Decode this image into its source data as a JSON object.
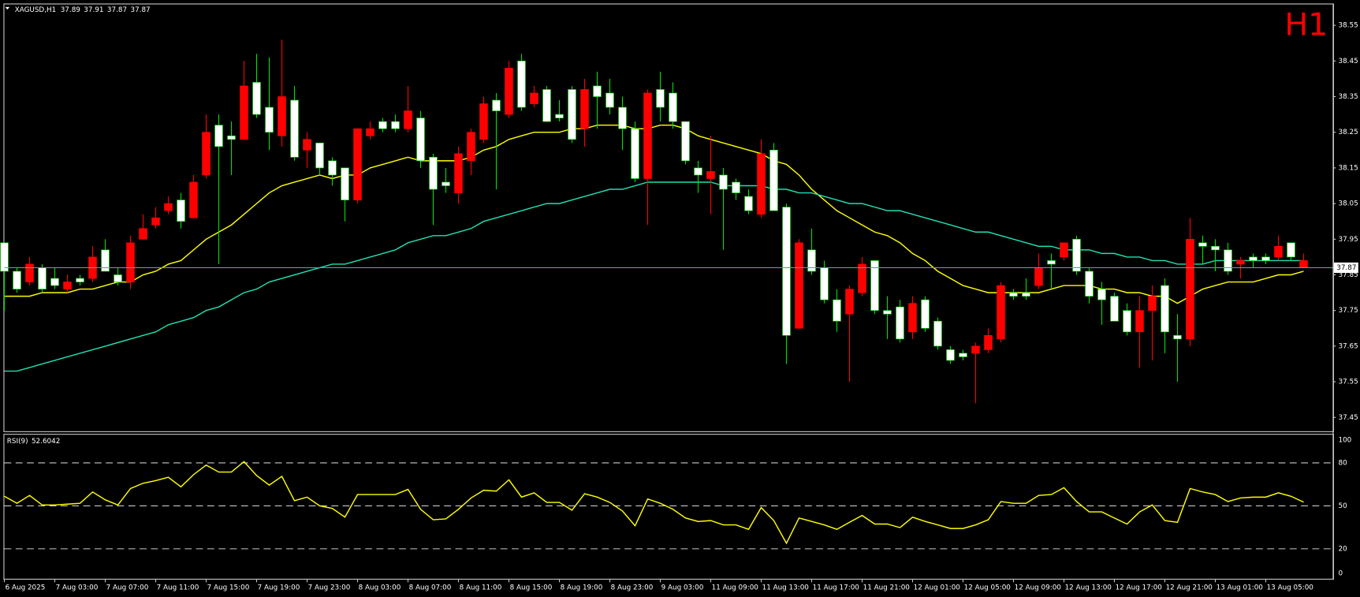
{
  "chart_data": [
    {
      "type": "candlestick",
      "title": "XAGUSD,H1",
      "timeframe_label": "H1",
      "categories": [
        "6 Aug 2025",
        null,
        null,
        null,
        "7 Aug 03:00",
        null,
        null,
        null,
        "7 Aug 07:00",
        null,
        null,
        null,
        "7 Aug 11:00",
        null,
        null,
        null,
        "7 Aug 15:00",
        null,
        null,
        null,
        "7 Aug 19:00",
        null,
        null,
        null,
        "7 Aug 23:00",
        null,
        null,
        null,
        "8 Aug 03:00",
        null,
        null,
        null,
        "8 Aug 07:00",
        null,
        null,
        null,
        "8 Aug 11:00",
        null,
        null,
        null,
        "8 Aug 15:00",
        null,
        null,
        null,
        "8 Aug 19:00",
        null,
        null,
        null,
        "8 Aug 23:00",
        null,
        null,
        null,
        "9 Aug 03:00",
        null,
        null,
        null,
        "11 Aug 09:00",
        null,
        null,
        null,
        "11 Aug 13:00",
        null,
        null,
        null,
        "11 Aug 17:00",
        null,
        null,
        null,
        "11 Aug 21:00",
        null,
        null,
        null,
        "12 Aug 01:00",
        null,
        null,
        null,
        "12 Aug 05:00",
        null,
        null,
        null,
        "12 Aug 09:00",
        null,
        null,
        null,
        "12 Aug 13:00",
        null,
        null,
        null,
        "12 Aug 17:00",
        null,
        null,
        null,
        "12 Aug 21:00",
        null,
        null,
        null,
        "13 Aug 01:00",
        null,
        null,
        null,
        "13 Aug 05:00",
        null,
        null,
        null
      ],
      "open": [
        37.86,
        37.81,
        37.88,
        37.81,
        37.82,
        37.83,
        37.83,
        37.9,
        37.86,
        37.83,
        37.94,
        37.98,
        38.01,
        38.05,
        38.0,
        38.11,
        38.25,
        38.21,
        38.23,
        38.38,
        38.3,
        38.25,
        38.35,
        38.18,
        38.23,
        38.15,
        38.13,
        38.06,
        38.26,
        38.26,
        38.26,
        38.26,
        38.31,
        38.17,
        38.09,
        38.1,
        38.19,
        38.25,
        38.33,
        38.31,
        38.43,
        38.32,
        38.36,
        38.28,
        38.29,
        38.23,
        38.37,
        38.35,
        38.32,
        38.26,
        38.12,
        38.36,
        38.32,
        38.28,
        38.17,
        38.13,
        38.14,
        38.09,
        38.08,
        38.03,
        38.19,
        38.03,
        37.68,
        37.94,
        37.86,
        37.78,
        37.72,
        37.81,
        37.88,
        37.75,
        37.74,
        37.67,
        37.77,
        37.7,
        37.65,
        37.61,
        37.62,
        37.65,
        37.68,
        37.82,
        37.79,
        37.79,
        37.87,
        37.88,
        37.94,
        37.86,
        37.79,
        37.78,
        37.72,
        37.69,
        37.75,
        37.79,
        37.69,
        37.67,
        37.95,
        37.93,
        37.92,
        37.86,
        37.89,
        37.89,
        37.89,
        37.93,
        37.9,
        37.89
      ],
      "high": [
        37.94,
        37.87,
        37.9,
        37.88,
        37.87,
        37.85,
        37.85,
        37.93,
        37.95,
        37.87,
        37.96,
        38.02,
        38.04,
        38.07,
        38.08,
        38.13,
        38.3,
        38.3,
        38.28,
        38.45,
        38.47,
        38.46,
        38.51,
        38.38,
        38.25,
        38.22,
        38.18,
        38.15,
        38.26,
        38.28,
        38.29,
        38.3,
        38.38,
        38.31,
        38.19,
        38.15,
        38.21,
        38.26,
        38.35,
        38.36,
        38.45,
        38.47,
        38.38,
        38.38,
        38.34,
        38.38,
        38.4,
        38.42,
        38.4,
        38.35,
        38.28,
        38.37,
        38.42,
        38.39,
        38.28,
        38.17,
        38.24,
        38.15,
        38.12,
        38.09,
        38.23,
        38.22,
        38.05,
        37.95,
        37.98,
        37.89,
        37.81,
        37.82,
        37.9,
        37.89,
        37.79,
        37.78,
        37.79,
        37.79,
        37.73,
        37.65,
        37.64,
        37.66,
        37.7,
        37.83,
        37.81,
        37.84,
        37.91,
        37.91,
        37.94,
        37.96,
        37.87,
        37.83,
        37.8,
        37.77,
        37.79,
        37.82,
        37.84,
        37.74,
        38.01,
        37.96,
        37.95,
        37.94,
        37.9,
        37.91,
        37.91,
        37.96,
        37.94,
        37.91
      ],
      "low": [
        37.75,
        37.8,
        37.82,
        37.8,
        37.81,
        37.8,
        37.82,
        37.83,
        37.86,
        37.82,
        37.81,
        37.95,
        37.98,
        38.02,
        37.98,
        38.01,
        38.12,
        37.88,
        38.13,
        38.23,
        38.29,
        38.2,
        38.21,
        38.17,
        38.15,
        38.13,
        38.1,
        38.0,
        38.05,
        38.23,
        38.25,
        38.25,
        38.25,
        38.15,
        37.99,
        38.08,
        38.05,
        38.13,
        38.22,
        38.09,
        38.29,
        38.31,
        38.32,
        38.28,
        38.28,
        38.22,
        38.21,
        38.26,
        38.3,
        38.2,
        38.11,
        37.99,
        38.28,
        38.26,
        38.16,
        38.08,
        38.02,
        37.92,
        38.06,
        38.02,
        38.01,
        38.03,
        37.6,
        37.7,
        37.85,
        37.77,
        37.69,
        37.55,
        37.79,
        37.74,
        37.67,
        37.66,
        37.67,
        37.69,
        37.64,
        37.6,
        37.61,
        37.49,
        37.63,
        37.66,
        37.78,
        37.78,
        37.81,
        37.81,
        37.89,
        37.85,
        37.77,
        37.71,
        37.72,
        37.68,
        37.59,
        37.61,
        37.63,
        37.55,
        37.65,
        37.88,
        37.86,
        37.85,
        37.84,
        37.87,
        37.88,
        37.89,
        37.89,
        37.87
      ],
      "close": [
        37.94,
        37.86,
        37.83,
        37.87,
        37.84,
        37.81,
        37.84,
        37.84,
        37.92,
        37.85,
        37.83,
        37.95,
        37.99,
        38.03,
        38.06,
        38.01,
        38.13,
        38.27,
        38.24,
        38.23,
        38.39,
        38.32,
        38.24,
        38.34,
        38.2,
        38.22,
        38.17,
        38.15,
        38.06,
        38.24,
        38.28,
        38.28,
        38.26,
        38.29,
        38.18,
        38.11,
        38.08,
        38.17,
        38.23,
        38.34,
        38.3,
        38.45,
        38.33,
        38.37,
        38.3,
        38.37,
        38.26,
        38.38,
        38.36,
        38.32,
        38.26,
        38.12,
        38.37,
        38.36,
        38.28,
        38.15,
        38.12,
        38.13,
        38.11,
        38.07,
        38.02,
        38.2,
        38.04,
        37.7,
        37.92,
        37.87,
        37.78,
        37.74,
        37.8,
        37.89,
        37.75,
        37.76,
        37.69,
        37.78,
        37.72,
        37.64,
        37.63,
        37.63,
        37.64,
        37.67,
        37.8,
        37.8,
        37.82,
        37.89,
        37.9,
        37.95,
        37.86,
        37.81,
        37.79,
        37.75,
        37.69,
        37.75,
        37.82,
        37.68,
        37.67,
        37.94,
        37.93,
        37.92,
        37.88,
        37.9,
        37.9,
        37.9,
        37.94,
        37.87
      ],
      "lines": [
        {
          "color": "#ffff00",
          "values": [
            37.79,
            37.79,
            37.79,
            37.8,
            37.8,
            37.8,
            37.81,
            37.81,
            37.82,
            37.83,
            37.83,
            37.85,
            37.86,
            37.88,
            37.89,
            37.92,
            37.95,
            37.97,
            37.99,
            38.02,
            38.05,
            38.08,
            38.1,
            38.11,
            38.12,
            38.13,
            38.12,
            38.13,
            38.13,
            38.15,
            38.16,
            38.17,
            38.18,
            38.17,
            38.17,
            38.17,
            38.17,
            38.18,
            38.2,
            38.21,
            38.23,
            38.24,
            38.25,
            38.25,
            38.25,
            38.26,
            38.26,
            38.27,
            38.27,
            38.27,
            38.26,
            38.26,
            38.27,
            38.27,
            38.26,
            38.24,
            38.23,
            38.22,
            38.21,
            38.2,
            38.19,
            38.17,
            38.16,
            38.13,
            38.09,
            38.06,
            38.03,
            38.01,
            37.99,
            37.97,
            37.96,
            37.94,
            37.91,
            37.89,
            37.86,
            37.84,
            37.82,
            37.81,
            37.8,
            37.8,
            37.8,
            37.8,
            37.8,
            37.81,
            37.82,
            37.82,
            37.82,
            37.81,
            37.81,
            37.8,
            37.8,
            37.79,
            37.79,
            37.77,
            37.79,
            37.81,
            37.82,
            37.83,
            37.83,
            37.83,
            37.84,
            37.85,
            37.85,
            37.86
          ]
        },
        {
          "color": "#20e0b0",
          "values": [
            37.58,
            37.58,
            37.59,
            37.6,
            37.61,
            37.62,
            37.63,
            37.64,
            37.65,
            37.66,
            37.67,
            37.68,
            37.69,
            37.71,
            37.72,
            37.73,
            37.75,
            37.76,
            37.78,
            37.8,
            37.81,
            37.83,
            37.84,
            37.85,
            37.86,
            37.87,
            37.88,
            37.88,
            37.89,
            37.9,
            37.91,
            37.92,
            37.94,
            37.95,
            37.96,
            37.96,
            37.97,
            37.98,
            38.0,
            38.01,
            38.02,
            38.03,
            38.04,
            38.05,
            38.05,
            38.06,
            38.07,
            38.08,
            38.09,
            38.09,
            38.1,
            38.11,
            38.11,
            38.11,
            38.11,
            38.11,
            38.11,
            38.1,
            38.1,
            38.1,
            38.1,
            38.09,
            38.09,
            38.08,
            38.08,
            38.07,
            38.06,
            38.05,
            38.05,
            38.04,
            38.03,
            38.03,
            38.02,
            38.01,
            38.0,
            37.99,
            37.98,
            37.97,
            37.97,
            37.96,
            37.95,
            37.94,
            37.93,
            37.93,
            37.92,
            37.92,
            37.92,
            37.91,
            37.91,
            37.9,
            37.9,
            37.89,
            37.89,
            37.88,
            37.88,
            37.88,
            37.89,
            37.89,
            37.89,
            37.89,
            37.89,
            37.89,
            37.89,
            37.89
          ]
        }
      ],
      "up_color": "#ffffff",
      "down_color": "#ff0000",
      "up_wick_color": "#00e000",
      "price_line_color": "#5f9ea0",
      "ylim": [
        37.41,
        38.61
      ],
      "yticks": [
        38.55,
        38.45,
        38.35,
        38.25,
        38.15,
        38.05,
        37.95,
        37.85,
        37.75,
        37.65,
        37.55,
        37.45
      ]
    },
    {
      "type": "line",
      "title": "RSI(9)",
      "color": "#ffff00",
      "values": [
        56.7,
        51.8,
        57.3,
        50.6,
        50.6,
        51.2,
        51.8,
        59.7,
        54.2,
        50.6,
        62.1,
        65.8,
        67.6,
        70.0,
        63.3,
        71.8,
        78.5,
        73.6,
        73.6,
        80.9,
        71.2,
        64.5,
        70.6,
        53.6,
        56.1,
        50.0,
        48.2,
        42.1,
        57.9,
        57.9,
        57.9,
        57.9,
        61.5,
        47.6,
        40.3,
        40.9,
        47.6,
        55.5,
        60.9,
        60.3,
        68.2,
        56.1,
        59.1,
        52.4,
        52.4,
        47.0,
        58.5,
        56.1,
        52.4,
        46.4,
        36.1,
        54.8,
        51.8,
        47.6,
        41.5,
        39.1,
        39.7,
        36.7,
        36.7,
        33.6,
        48.8,
        39.7,
        23.9,
        41.5,
        39.1,
        36.7,
        33.6,
        38.5,
        43.3,
        37.3,
        37.3,
        34.8,
        42.1,
        39.1,
        36.7,
        34.2,
        34.2,
        36.7,
        40.3,
        53.0,
        51.8,
        51.8,
        57.3,
        57.9,
        62.7,
        53.0,
        45.8,
        45.8,
        41.5,
        37.3,
        45.8,
        50.6,
        39.7,
        38.5,
        62.1,
        59.7,
        57.9,
        53.0,
        55.5,
        56.1,
        56.1,
        59.1,
        56.7,
        52.6042
      ],
      "ylim": [
        0,
        100
      ],
      "yticks": [
        100,
        80,
        50,
        20,
        0
      ]
    }
  ]
}
